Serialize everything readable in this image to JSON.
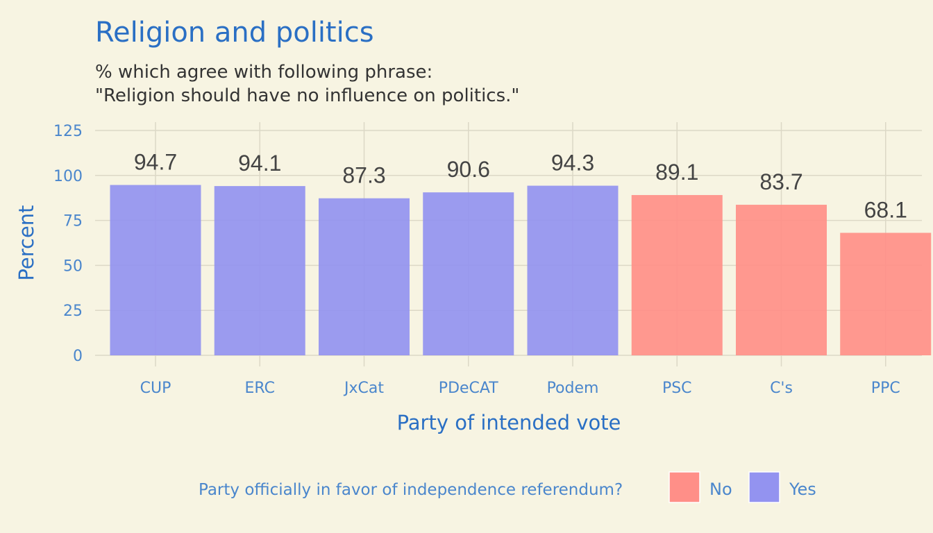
{
  "chart_data": {
    "type": "bar",
    "title": "Religion and politics",
    "subtitle_lines": [
      "% which agree with following phrase:",
      "\"Religion should have no influence on politics.\""
    ],
    "xlabel": "Party of intended vote",
    "ylabel": "Percent",
    "ylim": [
      0,
      125
    ],
    "yticks": [
      0,
      25,
      50,
      75,
      100,
      125
    ],
    "categories": [
      "CUP",
      "ERC",
      "JxCat",
      "PDeCAT",
      "Podem",
      "PSC",
      "C's",
      "PPC"
    ],
    "values": [
      94.7,
      94.1,
      87.3,
      90.6,
      94.3,
      89.1,
      83.7,
      68.1
    ],
    "data_labels": [
      "94.7",
      "94.1",
      "87.3",
      "90.6",
      "94.3",
      "89.1",
      "83.7",
      "68.1"
    ],
    "group": [
      "Yes",
      "Yes",
      "Yes",
      "Yes",
      "Yes",
      "No",
      "No",
      "No"
    ],
    "grid": true,
    "legend": {
      "title": "Party officially in favor of independence referendum?",
      "position": "bottom",
      "entries": [
        {
          "name": "No",
          "color": "#ff8f88"
        },
        {
          "name": "Yes",
          "color": "#9393f0"
        }
      ]
    },
    "colors": {
      "Yes": "#9393f0",
      "No": "#ff8f88"
    }
  }
}
